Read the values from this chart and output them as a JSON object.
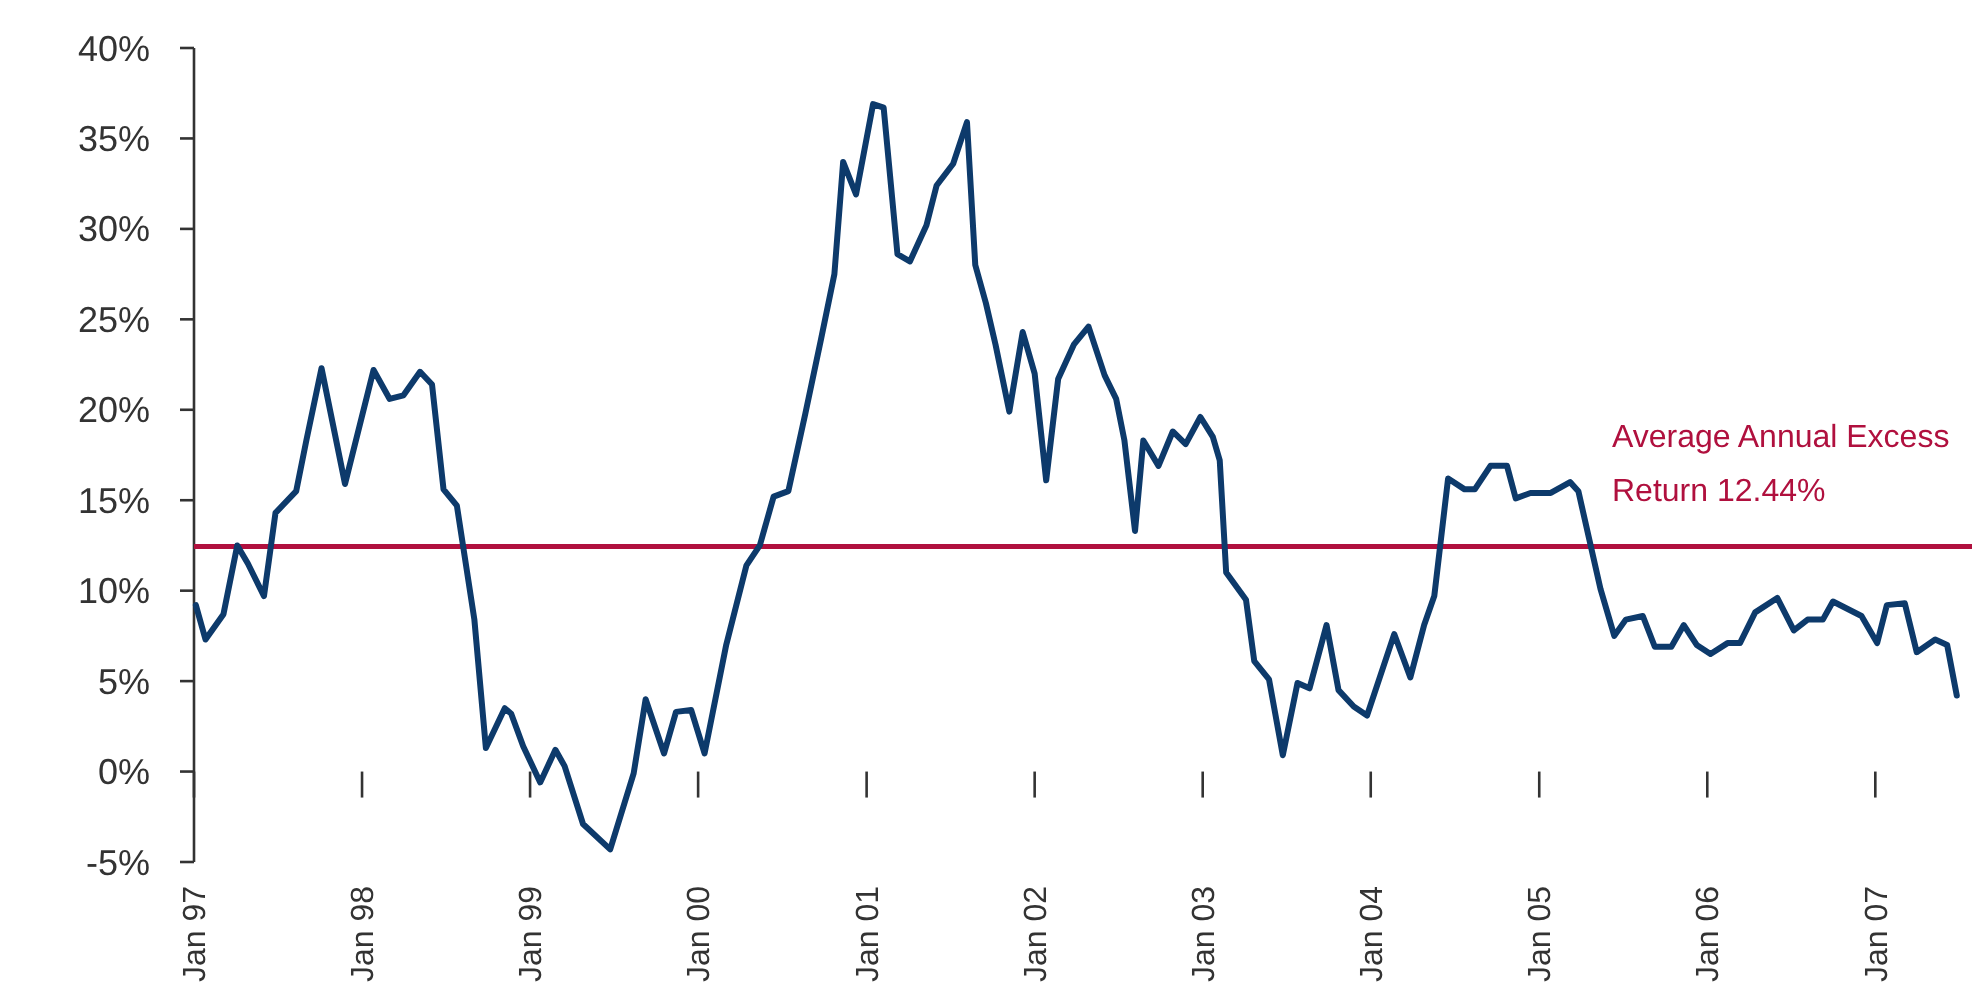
{
  "chart_data": {
    "type": "line",
    "x": [
      "1997-01-05",
      "1997-01-26",
      "1997-03-06",
      "1997-04-05",
      "1997-04-28",
      "1997-06-02",
      "1997-06-27",
      "1997-08-11",
      "1997-09-02",
      "1997-10-05",
      "1997-11-25",
      "1998-01-26",
      "1998-03-02",
      "1998-04-01",
      "1998-05-07",
      "1998-06-02",
      "1998-06-27",
      "1998-07-26",
      "1998-09-02",
      "1998-09-27",
      "1998-11-07",
      "1998-11-21",
      "1998-12-17",
      "1999-01-23",
      "1999-02-25",
      "1999-03-17",
      "1999-04-26",
      "1999-06-24",
      "1999-08-14",
      "1999-09-09",
      "1999-10-19",
      "1999-11-14",
      "1999-12-17",
      "2000-01-15",
      "2000-03-02",
      "2000-04-15",
      "2000-05-14",
      "2000-06-13",
      "2000-07-15",
      "2000-08-21",
      "2000-09-24",
      "2000-10-23",
      "2000-11-11",
      "2000-12-09",
      "2001-01-15",
      "2001-02-07",
      "2001-03-09",
      "2001-04-05",
      "2001-05-11",
      "2001-06-02",
      "2001-07-08",
      "2001-08-07",
      "2001-08-25",
      "2001-09-17",
      "2001-10-08",
      "2001-11-07",
      "2001-12-06",
      "2002-01-01",
      "2002-01-26",
      "2002-02-21",
      "2002-03-27",
      "2002-04-28",
      "2002-06-02",
      "2002-06-27",
      "2002-07-15",
      "2002-08-07",
      "2002-08-25",
      "2002-09-27",
      "2002-10-28",
      "2002-11-25",
      "2002-12-27",
      "2003-01-23",
      "2003-02-07",
      "2003-02-21",
      "2003-04-05",
      "2003-04-23",
      "2003-05-25",
      "2003-06-24",
      "2003-07-26",
      "2003-08-21",
      "2003-09-27",
      "2003-10-23",
      "2003-11-25",
      "2003-12-24",
      "2004-02-21",
      "2004-03-27",
      "2004-04-26",
      "2004-05-18",
      "2004-06-17",
      "2004-07-23",
      "2004-08-14",
      "2004-09-17",
      "2004-10-23",
      "2004-11-11",
      "2004-12-13",
      "2005-01-26",
      "2005-03-09",
      "2005-03-27",
      "2005-05-14",
      "2005-06-13",
      "2005-07-08",
      "2005-08-14",
      "2005-09-09",
      "2005-10-15",
      "2005-11-11",
      "2005-12-09",
      "2006-01-08",
      "2006-02-14",
      "2006-03-13",
      "2006-04-15",
      "2006-06-02",
      "2006-07-08",
      "2006-08-07",
      "2006-09-09",
      "2006-10-01",
      "2006-12-02",
      "2007-01-05",
      "2007-01-26",
      "2007-03-06",
      "2007-04-01",
      "2007-05-11",
      "2007-06-06",
      "2007-06-27"
    ],
    "series": [
      {
        "color": "#0d3a6b",
        "values": [
          9.2,
          7.3,
          8.7,
          12.5,
          11.5,
          9.7,
          14.3,
          15.5,
          18.3,
          22.3,
          15.9,
          22.2,
          20.6,
          20.8,
          22.1,
          21.4,
          15.6,
          14.7,
          8.4,
          1.3,
          3.5,
          3.2,
          1.4,
          -0.6,
          1.2,
          0.3,
          -2.9,
          -4.3,
          -0.1,
          4.0,
          1.0,
          3.3,
          3.4,
          1.0,
          7.0,
          11.4,
          12.5,
          15.2,
          15.5,
          19.8,
          23.9,
          27.5,
          33.7,
          31.9,
          36.9,
          36.7,
          28.6,
          28.2,
          30.2,
          32.4,
          33.6,
          35.9,
          28.0,
          25.9,
          23.6,
          19.9,
          24.3,
          22.0,
          16.1,
          21.7,
          23.6,
          24.6,
          21.9,
          20.6,
          18.3,
          13.3,
          18.3,
          16.9,
          18.8,
          18.1,
          19.6,
          18.5,
          17.2,
          11.0,
          9.5,
          6.1,
          5.1,
          0.9,
          4.9,
          4.6,
          8.1,
          4.5,
          3.6,
          3.1,
          7.6,
          5.2,
          8.1,
          9.7,
          16.2,
          15.6,
          15.6,
          16.9,
          16.9,
          15.1,
          15.4,
          15.4,
          16.0,
          15.5,
          10.1,
          7.5,
          8.4,
          8.6,
          6.9,
          6.9,
          8.1,
          7.0,
          6.5,
          7.1,
          7.1,
          8.8,
          9.6,
          7.8,
          8.4,
          8.4,
          9.4,
          8.6,
          7.1,
          9.2,
          9.3,
          6.6,
          7.3,
          7.0,
          4.2
        ]
      }
    ],
    "xlim": [
      "1997-01-01",
      "2007-07-30"
    ],
    "xticks": [
      {
        "value": "1997-01",
        "label": "Jan 97"
      },
      {
        "value": "1998-01",
        "label": "Jan 98"
      },
      {
        "value": "1999-01",
        "label": "Jan 99"
      },
      {
        "value": "2000-01",
        "label": "Jan 00"
      },
      {
        "value": "2001-01",
        "label": "Jan 01"
      },
      {
        "value": "2002-01",
        "label": "Jan 02"
      },
      {
        "value": "2003-01",
        "label": "Jan 03"
      },
      {
        "value": "2004-01",
        "label": "Jan 04"
      },
      {
        "value": "2005-01",
        "label": "Jan 05"
      },
      {
        "value": "2006-01",
        "label": "Jan 06"
      },
      {
        "value": "2007-01",
        "label": "Jan 07"
      }
    ],
    "ylim": [
      -5,
      40
    ],
    "yticks": [
      {
        "value": -5,
        "label": "-5%"
      },
      {
        "value": 0,
        "label": "0%"
      },
      {
        "value": 5,
        "label": "5%"
      },
      {
        "value": 10,
        "label": "10%"
      },
      {
        "value": 15,
        "label": "15%"
      },
      {
        "value": 20,
        "label": "20%"
      },
      {
        "value": 25,
        "label": "25%"
      },
      {
        "value": 30,
        "label": "30%"
      },
      {
        "value": 35,
        "label": "35%"
      },
      {
        "value": 40,
        "label": "40%"
      }
    ],
    "ref_lines": [
      {
        "axis": "y",
        "value": 12.44,
        "label": "Average Annual Excess Return 12.44%",
        "color": "#b0103e"
      }
    ]
  }
}
